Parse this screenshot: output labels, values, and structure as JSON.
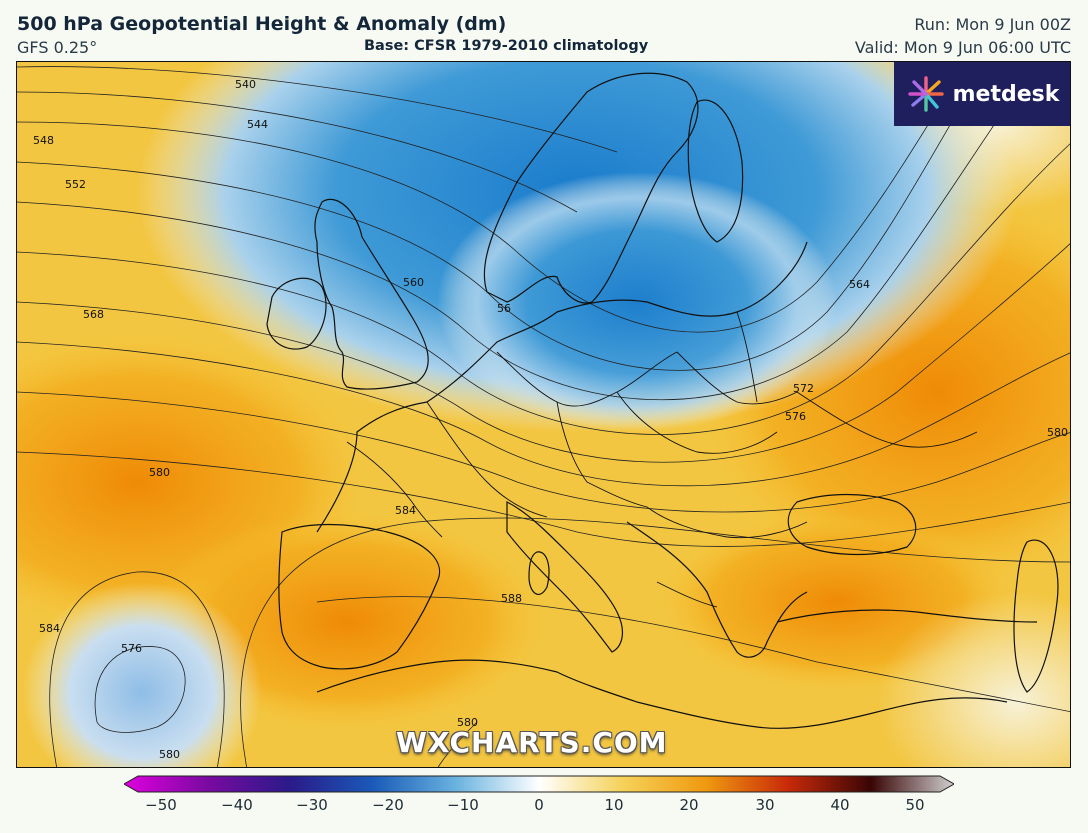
{
  "header": {
    "title": "500 hPa Geopotential Height & Anomaly (dm)",
    "model": "GFS 0.25°",
    "base": "Base: CFSR 1979-2010 climatology",
    "run": "Run: Mon 9 Jun 00Z",
    "valid": "Valid: Mon 9 Jun 06:00 UTC"
  },
  "logo": {
    "text": "metdesk"
  },
  "watermark": "WXCHARTS.COM",
  "contour_labels": [
    "540",
    "544",
    "548",
    "552",
    "560",
    "568",
    "572",
    "576",
    "580",
    "584",
    "588",
    "564",
    "576",
    "580",
    "584",
    "580",
    "580",
    "56"
  ],
  "colorbar": {
    "ticks": [
      "−50",
      "−40",
      "−30",
      "−20",
      "−10",
      "0",
      "10",
      "20",
      "30",
      "40",
      "50"
    ],
    "colors": [
      "#e000e0",
      "#7a0aa0",
      "#2a1a8a",
      "#1a5ab8",
      "#69b3e0",
      "#ffffff",
      "#f5d25a",
      "#f09a10",
      "#c82a0a",
      "#3a0505",
      "#cfcfcf"
    ]
  }
}
